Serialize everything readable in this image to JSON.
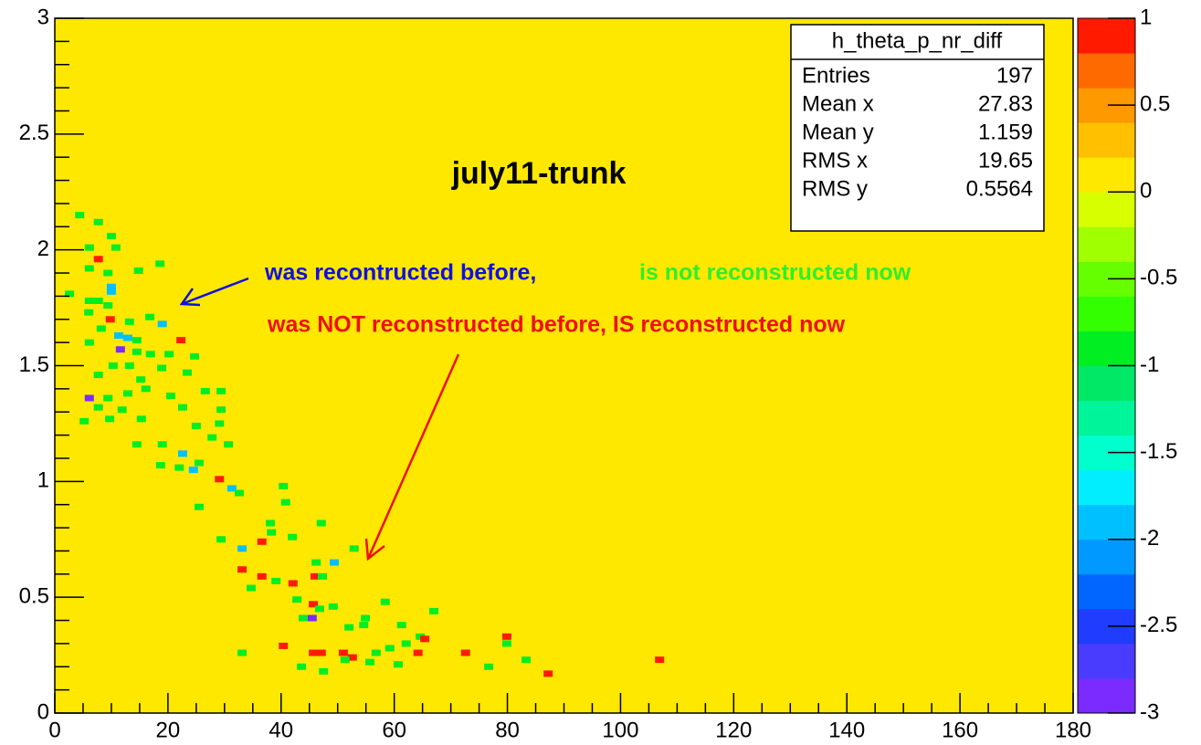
{
  "chart_data": {
    "type": "histogram2d",
    "title": "july11-trunk",
    "xlim": [
      0,
      180
    ],
    "xticks": [
      0,
      20,
      40,
      60,
      80,
      100,
      120,
      140,
      160,
      180
    ],
    "ylim": [
      0,
      3
    ],
    "yticks": [
      0,
      0.5,
      1,
      1.5,
      2,
      2.5,
      3
    ],
    "zlim": [
      -3,
      1
    ],
    "zticks": [
      1,
      0.5,
      0,
      -0.5,
      -1,
      -1.5,
      -2,
      -2.5,
      -3
    ],
    "frame_color": "#ffe800",
    "palette": [
      "#7b2bff",
      "#4a3cff",
      "#1f3cff",
      "#0066ff",
      "#0099ff",
      "#00c0ff",
      "#00eeff",
      "#00ffcc",
      "#00f59a",
      "#00e866",
      "#00ee22",
      "#33ff00",
      "#66ff00",
      "#a0ff00",
      "#d8ff00",
      "#ffe800",
      "#ffc000",
      "#ff9900",
      "#ff6a00",
      "#ff1a00"
    ],
    "annotations": [
      "was recontructed before,",
      "is not reconstructed now",
      "was NOT reconstructed before, IS reconstructed now"
    ],
    "stats": {
      "title": "h_theta_p_nr_diff",
      "labels": [
        "Entries",
        "Mean x",
        "Mean y",
        "RMS x",
        "RMS y"
      ],
      "values": [
        197,
        27.83,
        1.159,
        19.65,
        0.5564
      ]
    },
    "cells": {
      "x": [
        4.4,
        7.7,
        2.6,
        6.1,
        7.7,
        10.0,
        10.8,
        6.1,
        9.4,
        14.8,
        18.6,
        10.0,
        10.0,
        6.1,
        7.7,
        9.4,
        6.0,
        9.8,
        16.8,
        19.0,
        13.2,
        8.2,
        11.3,
        12.9,
        14.5,
        22.3,
        6.1,
        11.6,
        14.5,
        16.9,
        20.2,
        24.7,
        10.3,
        13.2,
        18.9,
        23.4,
        7.7,
        15.2,
        12.9,
        16.1,
        20.5,
        26.6,
        29.4,
        6.1,
        9.4,
        7.7,
        11.9,
        22.6,
        29.4,
        15.3,
        29.1,
        25.0,
        5.2,
        9.7,
        14.5,
        19.0,
        27.8,
        30.7,
        22.6,
        25.5,
        18.7,
        22.0,
        24.5,
        29.1,
        31.3,
        32.6,
        40.4,
        25.5,
        40.8,
        38.1,
        38.3,
        47.1,
        42.0,
        29.4,
        36.6,
        33.1,
        52.9,
        46.2,
        49.4,
        33.1,
        36.6,
        39.1,
        42.1,
        46.0,
        47.3,
        34.7,
        45.7,
        58.4,
        42.8,
        46.8,
        49.2,
        54.9,
        54.6,
        45.5,
        43.9,
        52.0,
        67.0,
        61.3,
        64.6,
        62.1,
        59.2,
        65.4,
        40.4,
        79.9,
        79.9,
        45.7,
        47.1,
        51.0,
        52.6,
        64.2,
        33.1,
        56.8,
        72.6,
        83.3,
        51.3,
        43.6,
        47.5,
        60.7,
        55.7,
        76.7,
        87.2,
        106.9
      ],
      "y": [
        2.15,
        2.12,
        1.81,
        2.01,
        1.96,
        2.06,
        2.01,
        1.92,
        1.9,
        1.91,
        1.94,
        1.84,
        1.82,
        1.78,
        1.78,
        1.76,
        1.73,
        1.7,
        1.71,
        1.68,
        1.69,
        1.66,
        1.63,
        1.62,
        1.61,
        1.61,
        1.6,
        1.57,
        1.56,
        1.55,
        1.55,
        1.54,
        1.5,
        1.5,
        1.49,
        1.47,
        1.46,
        1.44,
        1.38,
        1.4,
        1.37,
        1.39,
        1.39,
        1.36,
        1.36,
        1.32,
        1.31,
        1.32,
        1.31,
        1.27,
        1.25,
        1.24,
        1.26,
        1.27,
        1.16,
        1.16,
        1.19,
        1.16,
        1.12,
        1.08,
        1.07,
        1.06,
        1.05,
        1.01,
        0.97,
        0.95,
        0.98,
        0.89,
        0.91,
        0.82,
        0.78,
        0.82,
        0.76,
        0.75,
        0.74,
        0.71,
        0.71,
        0.65,
        0.65,
        0.62,
        0.59,
        0.57,
        0.56,
        0.59,
        0.59,
        0.54,
        0.47,
        0.48,
        0.49,
        0.45,
        0.46,
        0.41,
        0.38,
        0.41,
        0.41,
        0.37,
        0.44,
        0.38,
        0.33,
        0.3,
        0.28,
        0.32,
        0.29,
        0.33,
        0.3,
        0.26,
        0.26,
        0.26,
        0.24,
        0.26,
        0.26,
        0.26,
        0.26,
        0.23,
        0.23,
        0.2,
        0.18,
        0.21,
        0.22,
        0.2,
        0.17,
        0.23
      ],
      "z": [
        -1,
        -1,
        -1,
        -1,
        1,
        -1,
        -1,
        -1,
        -1,
        -1,
        -1,
        -2,
        -2,
        -1,
        -1,
        -1,
        -1,
        1,
        -1,
        -2,
        -1,
        -1,
        -2,
        -2,
        -1,
        1,
        -1,
        -3,
        -1,
        -1,
        -1,
        -1,
        -1,
        -1,
        -1,
        -1,
        -1,
        -1,
        -1,
        -1,
        -1,
        -1,
        -1,
        -3,
        -1,
        -1,
        -1,
        -1,
        -1,
        -1,
        -1,
        -1,
        -1,
        -1,
        -1,
        -1,
        -1,
        -1,
        -2,
        -1,
        -1,
        -1,
        -2,
        1,
        -2,
        -1,
        -1,
        -1,
        -1,
        -1,
        -1,
        -1,
        -1,
        -1,
        1,
        -2,
        -1,
        -1,
        -2,
        1,
        1,
        -1,
        1,
        1,
        -1,
        -1,
        1,
        -1,
        -1,
        -1,
        -1,
        -1,
        -1,
        -3,
        -1,
        -1,
        -1,
        -1,
        -1,
        -1,
        -1,
        1,
        1,
        1,
        -1,
        1,
        1,
        1,
        1,
        1,
        -1,
        -1,
        1,
        -1,
        -1,
        -1,
        -1,
        -1,
        -1,
        -1,
        1,
        1
      ]
    }
  }
}
